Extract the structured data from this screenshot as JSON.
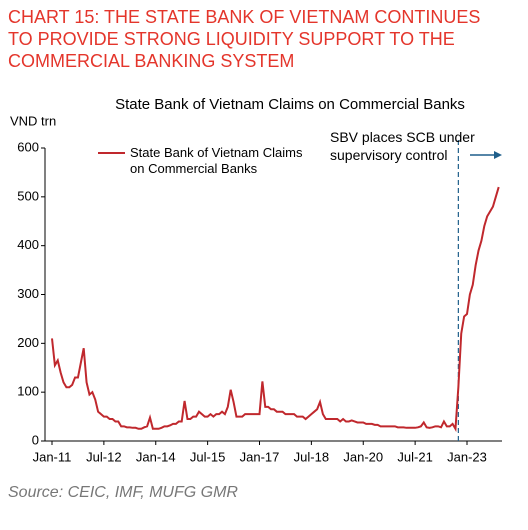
{
  "chart_data": {
    "type": "line",
    "headline": [
      "CHART 15: THE STATE BANK OF VIETNAM CONTINUES",
      "TO PROVIDE STRONG LIQUIDITY SUPPORT TO THE",
      "COMMERCIAL BANKING SYSTEM"
    ],
    "title": "State Bank of Vietnam Claims on Commercial Banks",
    "y_label": "VND trn",
    "source": "Source: CEIC, IMF, MUFG GMR",
    "annotation": {
      "text": "SBV places SCB under supervisory control",
      "x": "Oct-22"
    },
    "x": [
      "Jan-11",
      "Feb-11",
      "Mar-11",
      "Apr-11",
      "May-11",
      "Jun-11",
      "Jul-11",
      "Aug-11",
      "Sep-11",
      "Oct-11",
      "Nov-11",
      "Dec-11",
      "Jan-12",
      "Feb-12",
      "Mar-12",
      "Apr-12",
      "May-12",
      "Jun-12",
      "Jul-12",
      "Aug-12",
      "Sep-12",
      "Oct-12",
      "Nov-12",
      "Dec-12",
      "Jan-13",
      "Feb-13",
      "Mar-13",
      "Apr-13",
      "May-13",
      "Jun-13",
      "Jul-13",
      "Aug-13",
      "Sep-13",
      "Oct-13",
      "Nov-13",
      "Dec-13",
      "Jan-14",
      "Feb-14",
      "Mar-14",
      "Apr-14",
      "May-14",
      "Jun-14",
      "Jul-14",
      "Aug-14",
      "Sep-14",
      "Oct-14",
      "Nov-14",
      "Dec-14",
      "Jan-15",
      "Feb-15",
      "Mar-15",
      "Apr-15",
      "May-15",
      "Jun-15",
      "Jul-15",
      "Aug-15",
      "Sep-15",
      "Oct-15",
      "Nov-15",
      "Dec-15",
      "Jan-16",
      "Feb-16",
      "Mar-16",
      "Apr-16",
      "May-16",
      "Jun-16",
      "Jul-16",
      "Aug-16",
      "Sep-16",
      "Oct-16",
      "Nov-16",
      "Dec-16",
      "Jan-17",
      "Feb-17",
      "Mar-17",
      "Apr-17",
      "May-17",
      "Jun-17",
      "Jul-17",
      "Aug-17",
      "Sep-17",
      "Oct-17",
      "Nov-17",
      "Dec-17",
      "Jan-18",
      "Feb-18",
      "Mar-18",
      "Apr-18",
      "May-18",
      "Jun-18",
      "Jul-18",
      "Aug-18",
      "Sep-18",
      "Oct-18",
      "Nov-18",
      "Dec-18",
      "Jan-19",
      "Feb-19",
      "Mar-19",
      "Apr-19",
      "May-19",
      "Jun-19",
      "Jul-19",
      "Aug-19",
      "Sep-19",
      "Oct-19",
      "Nov-19",
      "Dec-19",
      "Jan-20",
      "Feb-20",
      "Mar-20",
      "Apr-20",
      "May-20",
      "Jun-20",
      "Jul-20",
      "Aug-20",
      "Sep-20",
      "Oct-20",
      "Nov-20",
      "Dec-20",
      "Jan-21",
      "Feb-21",
      "Mar-21",
      "Apr-21",
      "May-21",
      "Jun-21",
      "Jul-21",
      "Aug-21",
      "Sep-21",
      "Oct-21",
      "Nov-21",
      "Dec-21",
      "Jan-22",
      "Feb-22",
      "Mar-22",
      "Apr-22",
      "May-22",
      "Jun-22",
      "Jul-22",
      "Aug-22",
      "Sep-22",
      "Oct-22",
      "Nov-22",
      "Dec-22",
      "Jan-23",
      "Feb-23",
      "Mar-23",
      "Apr-23",
      "May-23",
      "Jun-23",
      "Jul-23",
      "Aug-23",
      "Sep-23",
      "Oct-23",
      "Nov-23",
      "Dec-23"
    ],
    "series": [
      {
        "name": "State Bank of Vietnam Claims on Commercial Banks",
        "color": "#c0282d",
        "values": [
          210,
          155,
          165,
          140,
          120,
          110,
          110,
          115,
          130,
          130,
          160,
          190,
          120,
          95,
          100,
          85,
          60,
          55,
          50,
          50,
          45,
          45,
          40,
          40,
          30,
          30,
          28,
          28,
          27,
          27,
          25,
          25,
          28,
          30,
          48,
          25,
          25,
          25,
          27,
          30,
          30,
          32,
          35,
          35,
          40,
          40,
          82,
          45,
          45,
          50,
          50,
          60,
          55,
          50,
          50,
          55,
          50,
          55,
          55,
          60,
          55,
          70,
          105,
          80,
          50,
          50,
          50,
          55,
          55,
          55,
          55,
          55,
          55,
          122,
          70,
          70,
          65,
          65,
          60,
          60,
          60,
          55,
          55,
          55,
          55,
          50,
          50,
          50,
          45,
          50,
          55,
          60,
          65,
          80,
          55,
          45,
          45,
          45,
          45,
          45,
          40,
          45,
          40,
          40,
          42,
          40,
          38,
          38,
          38,
          35,
          35,
          35,
          33,
          33,
          30,
          30,
          30,
          30,
          30,
          30,
          28,
          28,
          28,
          27,
          27,
          27,
          27,
          28,
          30,
          38,
          28,
          27,
          28,
          30,
          30,
          28,
          40,
          30,
          30,
          35,
          25,
          110,
          220,
          255,
          260,
          300,
          320,
          360,
          390,
          410,
          440,
          460,
          470,
          480,
          500,
          520
        ]
      }
    ],
    "xticks": [
      "Jan-11",
      "Jul-12",
      "Jan-14",
      "Jul-15",
      "Jan-17",
      "Jul-18",
      "Jan-20",
      "Jul-21",
      "Jan-23"
    ],
    "ylim": [
      0,
      600
    ],
    "yticks": [
      0,
      100,
      200,
      300,
      400,
      500,
      600
    ]
  }
}
